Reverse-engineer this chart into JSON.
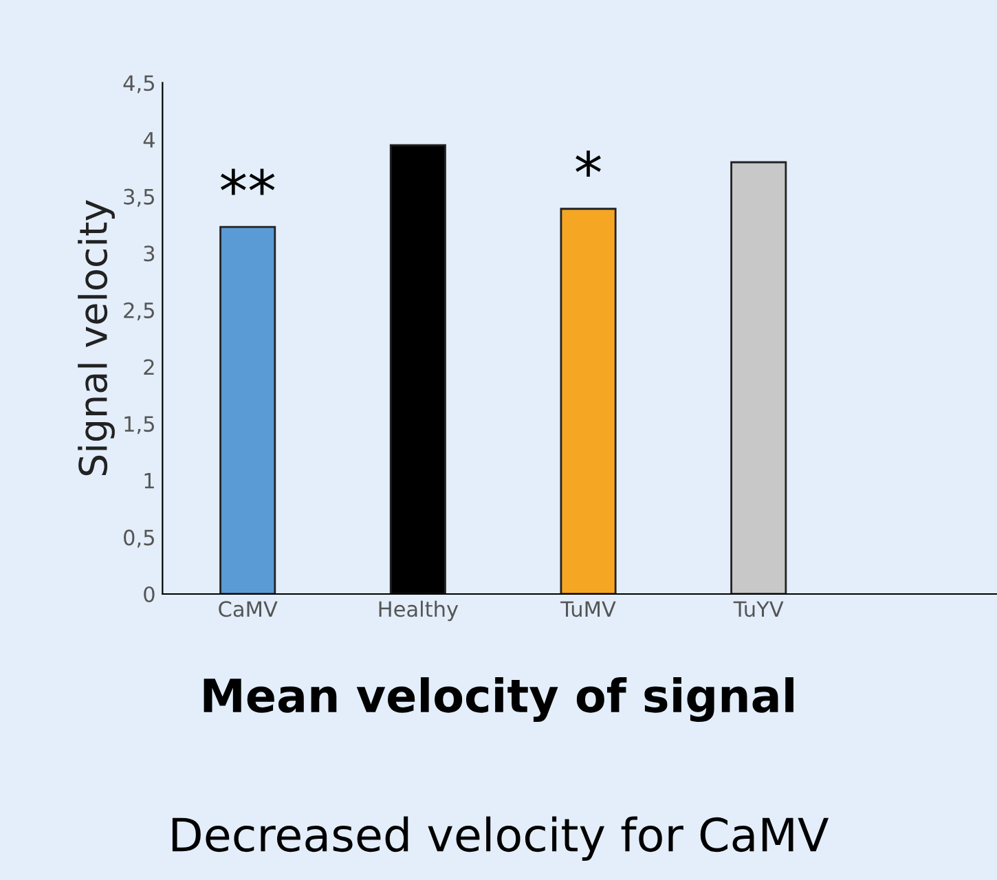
{
  "chart_data": {
    "type": "bar",
    "title": "Mean velocity of signal",
    "subtitle": "Decreased velocity for CaMV",
    "ylabel": "Signal velocity",
    "categories": [
      "CaMV",
      "Healthy",
      "TuMV",
      "TuYV"
    ],
    "values": [
      3.23,
      3.95,
      3.39,
      3.8
    ],
    "colors": [
      "#5b9bd5",
      "#000000",
      "#f5a623",
      "#c8c8c8"
    ],
    "ylim": [
      0,
      4.5
    ],
    "yticks": [
      0,
      {
        "value": 0.5,
        "label": "0,5"
      },
      1,
      {
        "value": 1.5,
        "label": "1,5"
      },
      2,
      {
        "value": 2.5,
        "label": "2,5"
      },
      3,
      {
        "value": 3.5,
        "label": "3,5"
      },
      4,
      {
        "value": 4.5,
        "label": "4,5"
      }
    ],
    "annotations": [
      {
        "text": "**",
        "x": "CaMV",
        "y": 3.23
      },
      {
        "text": "*",
        "x": "TuMV",
        "y": 3.39
      }
    ],
    "grid": false,
    "legend": false
  }
}
